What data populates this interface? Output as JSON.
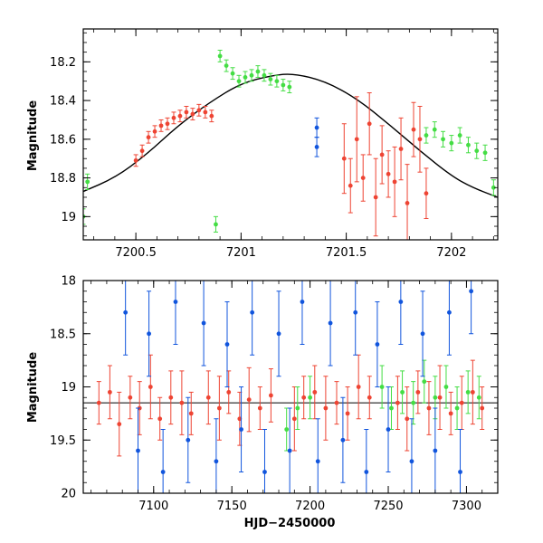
{
  "colors": {
    "red": "#ee4433",
    "green": "#44dd44",
    "blue": "#1155dd",
    "model": "#000000"
  },
  "chart_data": [
    {
      "type": "scatter",
      "panel": "top",
      "title": "",
      "xlabel": "",
      "ylabel": "Magnitude",
      "xlim": [
        7200.25,
        7202.22
      ],
      "ylim": [
        19.12,
        18.03
      ],
      "y_inverted": true,
      "xticks": [
        7200.5,
        7201,
        7201.5,
        7202
      ],
      "xtick_labels": [
        "7200.5",
        "7201",
        "7201.5",
        "7202"
      ],
      "yticks": [
        18.2,
        18.4,
        18.6,
        18.8,
        19
      ],
      "ytick_labels": [
        "18.2",
        "18.4",
        "18.6",
        "18.8",
        "19"
      ],
      "model_curve": {
        "name": "sinusoidal fit",
        "x": [
          7200.25,
          7200.4,
          7200.55,
          7200.7,
          7200.85,
          7201.0,
          7201.15,
          7201.25,
          7201.4,
          7201.55,
          7201.7,
          7201.85,
          7202.0,
          7202.1,
          7202.22
        ],
        "y": [
          18.87,
          18.8,
          18.68,
          18.53,
          18.41,
          18.31,
          18.27,
          18.26,
          18.3,
          18.39,
          18.52,
          18.66,
          18.79,
          18.85,
          18.9
        ]
      },
      "series": [
        {
          "name": "red",
          "x": [
            7200.5,
            7200.53,
            7200.56,
            7200.59,
            7200.62,
            7200.65,
            7200.68,
            7200.71,
            7200.74,
            7200.77,
            7200.8,
            7200.83,
            7200.86,
            7201.49,
            7201.52,
            7201.55,
            7201.58,
            7201.61,
            7201.64,
            7201.67,
            7201.7,
            7201.73,
            7201.76,
            7201.79,
            7201.82,
            7201.85,
            7201.88
          ],
          "y": [
            18.71,
            18.66,
            18.59,
            18.56,
            18.53,
            18.52,
            18.49,
            18.48,
            18.46,
            18.47,
            18.45,
            18.46,
            18.48,
            18.7,
            18.84,
            18.6,
            18.8,
            18.52,
            18.9,
            18.68,
            18.78,
            18.82,
            18.65,
            18.93,
            18.55,
            18.6,
            18.88
          ],
          "err": [
            0.03,
            0.03,
            0.03,
            0.03,
            0.03,
            0.03,
            0.03,
            0.03,
            0.03,
            0.03,
            0.03,
            0.03,
            0.03,
            0.18,
            0.14,
            0.22,
            0.12,
            0.16,
            0.2,
            0.15,
            0.12,
            0.18,
            0.16,
            0.2,
            0.14,
            0.17,
            0.13
          ]
        },
        {
          "name": "green",
          "x": [
            7200.25,
            7200.27,
            7200.88,
            7200.9,
            7200.93,
            7200.96,
            7200.99,
            7201.02,
            7201.05,
            7201.08,
            7201.11,
            7201.14,
            7201.17,
            7201.2,
            7201.23,
            7201.88,
            7201.92,
            7201.96,
            7202.0,
            7202.04,
            7202.08,
            7202.12,
            7202.16,
            7202.2
          ],
          "y": [
            19.0,
            18.82,
            19.04,
            18.17,
            18.22,
            18.26,
            18.3,
            18.28,
            18.27,
            18.25,
            18.27,
            18.29,
            18.3,
            18.32,
            18.33,
            18.58,
            18.55,
            18.6,
            18.62,
            18.58,
            18.63,
            18.66,
            18.67,
            18.85
          ],
          "err": [
            0.04,
            0.04,
            0.04,
            0.03,
            0.03,
            0.03,
            0.03,
            0.03,
            0.03,
            0.03,
            0.03,
            0.03,
            0.03,
            0.03,
            0.03,
            0.04,
            0.04,
            0.04,
            0.04,
            0.04,
            0.04,
            0.04,
            0.04,
            0.04
          ]
        },
        {
          "name": "blue",
          "x": [
            7201.36,
            7201.36
          ],
          "y": [
            18.54,
            18.64
          ],
          "err": [
            0.05,
            0.05
          ]
        }
      ]
    },
    {
      "type": "scatter",
      "panel": "bottom",
      "title": "",
      "xlabel": "HJD−2450000",
      "ylabel": "Magnitude",
      "xlim": [
        7055,
        7320
      ],
      "ylim": [
        20,
        18
      ],
      "y_inverted": true,
      "xticks": [
        7100,
        7150,
        7200,
        7250,
        7300
      ],
      "xtick_labels": [
        "7100",
        "7150",
        "7200",
        "7250",
        "7300"
      ],
      "yticks": [
        18,
        18.5,
        19,
        19.5,
        20
      ],
      "ytick_labels": [
        "18",
        "18.5",
        "19",
        "19.5",
        "20"
      ],
      "reference_line": 19.15,
      "series": [
        {
          "name": "red",
          "x": [
            7065,
            7072,
            7078,
            7085,
            7091,
            7098,
            7104,
            7111,
            7118,
            7124,
            7135,
            7142,
            7148,
            7155,
            7161,
            7168,
            7175,
            7190,
            7196,
            7203,
            7210,
            7217,
            7224,
            7231,
            7238,
            7256,
            7262,
            7269,
            7276,
            7283,
            7290,
            7297,
            7304,
            7310
          ],
          "y": [
            19.15,
            19.05,
            19.35,
            19.1,
            19.2,
            19.0,
            19.3,
            19.1,
            19.15,
            19.25,
            19.1,
            19.2,
            19.05,
            19.3,
            19.12,
            19.2,
            19.08,
            19.3,
            19.1,
            19.05,
            19.2,
            19.15,
            19.25,
            19.0,
            19.1,
            19.15,
            19.3,
            19.05,
            19.2,
            19.1,
            19.25,
            19.15,
            19.05,
            19.2
          ],
          "err": [
            0.2,
            0.25,
            0.3,
            0.2,
            0.25,
            0.3,
            0.2,
            0.25,
            0.3,
            0.2,
            0.25,
            0.3,
            0.2,
            0.25,
            0.3,
            0.2,
            0.25,
            0.3,
            0.2,
            0.25,
            0.3,
            0.2,
            0.25,
            0.3,
            0.2,
            0.25,
            0.3,
            0.2,
            0.25,
            0.3,
            0.2,
            0.25,
            0.3,
            0.2
          ]
        },
        {
          "name": "green",
          "x": [
            7185,
            7192,
            7200,
            7246,
            7252,
            7259,
            7266,
            7273,
            7280,
            7287,
            7294,
            7301,
            7308
          ],
          "y": [
            19.4,
            19.2,
            19.1,
            19.0,
            19.2,
            19.05,
            19.15,
            18.95,
            19.1,
            19.0,
            19.2,
            19.05,
            19.1
          ],
          "err": [
            0.2,
            0.2,
            0.2,
            0.2,
            0.2,
            0.2,
            0.2,
            0.2,
            0.2,
            0.2,
            0.2,
            0.2,
            0.2
          ]
        },
        {
          "name": "blue",
          "x": [
            7082,
            7090,
            7097,
            7106,
            7114,
            7122,
            7132,
            7140,
            7147,
            7156,
            7163,
            7171,
            7180,
            7187,
            7195,
            7205,
            7213,
            7221,
            7229,
            7236,
            7243,
            7250,
            7258,
            7265,
            7272,
            7280,
            7289,
            7296,
            7303
          ],
          "y": [
            18.3,
            19.6,
            18.5,
            19.8,
            18.2,
            19.5,
            18.4,
            19.7,
            18.6,
            19.4,
            18.3,
            19.8,
            18.5,
            19.6,
            18.2,
            19.7,
            18.4,
            19.5,
            18.3,
            19.8,
            18.6,
            19.4,
            18.2,
            19.7,
            18.5,
            19.6,
            18.3,
            19.8,
            18.1
          ],
          "err": [
            0.4,
            0.4,
            0.4,
            0.4,
            0.4,
            0.4,
            0.4,
            0.4,
            0.4,
            0.4,
            0.4,
            0.4,
            0.4,
            0.4,
            0.4,
            0.4,
            0.4,
            0.4,
            0.4,
            0.4,
            0.4,
            0.4,
            0.4,
            0.4,
            0.4,
            0.4,
            0.4,
            0.4,
            0.4
          ]
        }
      ]
    }
  ]
}
